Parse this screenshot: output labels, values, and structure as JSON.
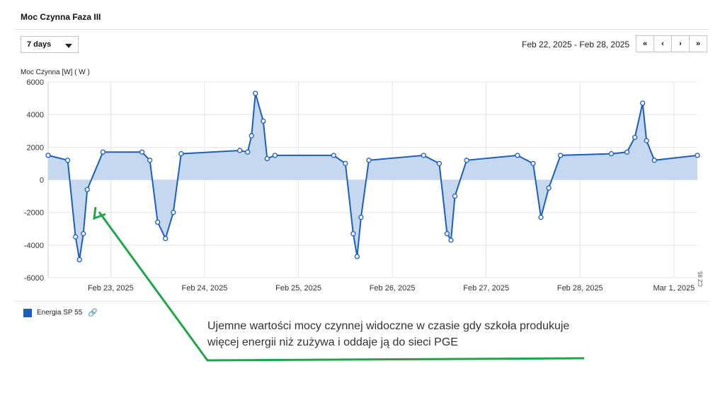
{
  "panel": {
    "title": "Moc Czynna Faza III",
    "range_select": "7 days",
    "date_range": "Feb 22, 2025 - Feb 28, 2025",
    "nav": {
      "first": "«",
      "prev": "‹",
      "next": "›",
      "last": "»"
    },
    "source_tag": "CZ 85"
  },
  "legend": {
    "name": "Energia SP 55",
    "link_icon": "🔗"
  },
  "annotation": "Ujemne wartości mocy czynnej widoczne w czasie gdy szkoła produkuje więcej energii niż zużywa i oddaje ją do sieci PGE",
  "colors": {
    "series": "#1a5fbf",
    "fill": "#c5d8ef",
    "arrow": "#1fa64a"
  },
  "chart_data": {
    "type": "area",
    "ylabel": "Moc Czynna [W] ( W )",
    "ylim": [
      -6000,
      6000
    ],
    "yticks": [
      6000,
      4000,
      2000,
      0,
      -2000,
      -4000,
      -6000
    ],
    "xlim": [
      "2025-02-22T08:00",
      "2025-03-01T06:00"
    ],
    "xticks": [
      "Feb 23, 2025",
      "Feb 24, 2025",
      "Feb 25, 2025",
      "Feb 26, 2025",
      "Feb 27, 2025",
      "Feb 28, 2025",
      "Mar 1, 2025"
    ],
    "grid": true,
    "legend_position": "bottom-left",
    "series": [
      {
        "name": "Energia SP 55",
        "x": [
          "2025-02-22T08:00",
          "2025-02-22T13:00",
          "2025-02-22T15:00",
          "2025-02-22T16:00",
          "2025-02-22T17:00",
          "2025-02-22T18:00",
          "2025-02-22T22:00",
          "2025-02-23T08:00",
          "2025-02-23T10:00",
          "2025-02-23T12:00",
          "2025-02-23T14:00",
          "2025-02-23T16:00",
          "2025-02-23T18:00",
          "2025-02-24T09:00",
          "2025-02-24T11:00",
          "2025-02-24T12:00",
          "2025-02-24T13:00",
          "2025-02-24T15:00",
          "2025-02-24T16:00",
          "2025-02-24T18:00",
          "2025-02-25T09:00",
          "2025-02-25T12:00",
          "2025-02-25T14:00",
          "2025-02-25T15:00",
          "2025-02-25T16:00",
          "2025-02-25T18:00",
          "2025-02-26T08:00",
          "2025-02-26T12:00",
          "2025-02-26T14:00",
          "2025-02-26T15:00",
          "2025-02-26T16:00",
          "2025-02-26T19:00",
          "2025-02-27T08:00",
          "2025-02-27T12:00",
          "2025-02-27T14:00",
          "2025-02-27T16:00",
          "2025-02-27T19:00",
          "2025-02-28T08:00",
          "2025-02-28T12:00",
          "2025-02-28T14:00",
          "2025-02-28T16:00",
          "2025-02-28T17:00",
          "2025-02-28T19:00",
          "2025-03-01T06:00"
        ],
        "y": [
          1500,
          1200,
          -3500,
          -4900,
          -3300,
          -600,
          1700,
          1700,
          1200,
          -2600,
          -3600,
          -2000,
          1600,
          1800,
          1700,
          2700,
          5300,
          3600,
          1300,
          1500,
          1500,
          1000,
          -3300,
          -4700,
          -2300,
          1200,
          1500,
          1000,
          -3300,
          -3700,
          -1000,
          1200,
          1500,
          1000,
          -2300,
          -500,
          1500,
          1600,
          1700,
          2600,
          4700,
          2400,
          1200,
          1500
        ]
      }
    ]
  }
}
